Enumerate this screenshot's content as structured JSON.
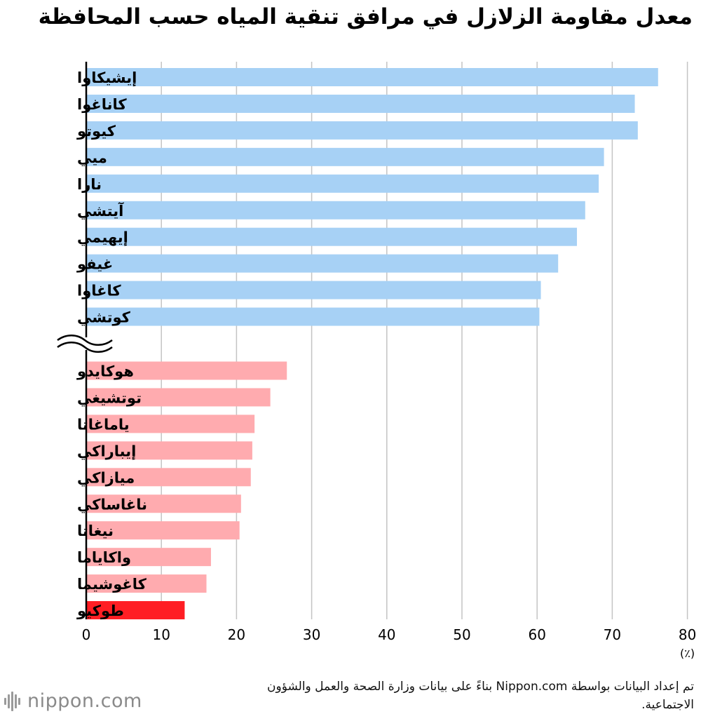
{
  "title": "معدل مقاومة الزلازل في مرافق تنقية المياه حسب المحافظة",
  "unit_label": "(٪)",
  "source_note": "تم إعداد البيانات بواسطة Nippon.com بناءً على بيانات وزارة الصحة والعمل والشؤون الاجتماعية.",
  "logo_text": "nippon.com",
  "colors": {
    "top_group": "#a7d1f5",
    "bottom_group": "#ffabaf",
    "highlight": "#ff1e24",
    "grid": "#c4c4c4",
    "axis": "#000000"
  },
  "chart_data": {
    "type": "bar",
    "orientation": "horizontal",
    "axis_break_after_index": 9,
    "xlim": [
      0,
      80
    ],
    "xticks": [
      0,
      10,
      20,
      30,
      40,
      50,
      60,
      70,
      80
    ],
    "grid": true,
    "categories": [
      "إيشيكاوا",
      "كاناغوا",
      "كيوتو",
      "ميي",
      "نارا",
      "آيتشي",
      "إيهيمي",
      "غيفو",
      "كاغاوا",
      "كوتشي",
      "هوكايدو",
      "توتشيغي",
      "ياماغاتا",
      "إيباراكي",
      "ميازاكي",
      "ناغاساكي",
      "نيغاتا",
      "واكاياما",
      "كاغوشيما",
      "طوكيو"
    ],
    "values": [
      76.1,
      73.0,
      73.4,
      68.9,
      68.2,
      66.4,
      65.3,
      62.8,
      60.5,
      60.3,
      26.7,
      24.5,
      22.4,
      22.1,
      21.9,
      20.6,
      20.4,
      16.6,
      16.0,
      13.1
    ],
    "groups": [
      "top",
      "top",
      "top",
      "top",
      "top",
      "top",
      "top",
      "top",
      "top",
      "top",
      "bottom",
      "bottom",
      "bottom",
      "bottom",
      "bottom",
      "bottom",
      "bottom",
      "bottom",
      "bottom",
      "highlight"
    ]
  }
}
